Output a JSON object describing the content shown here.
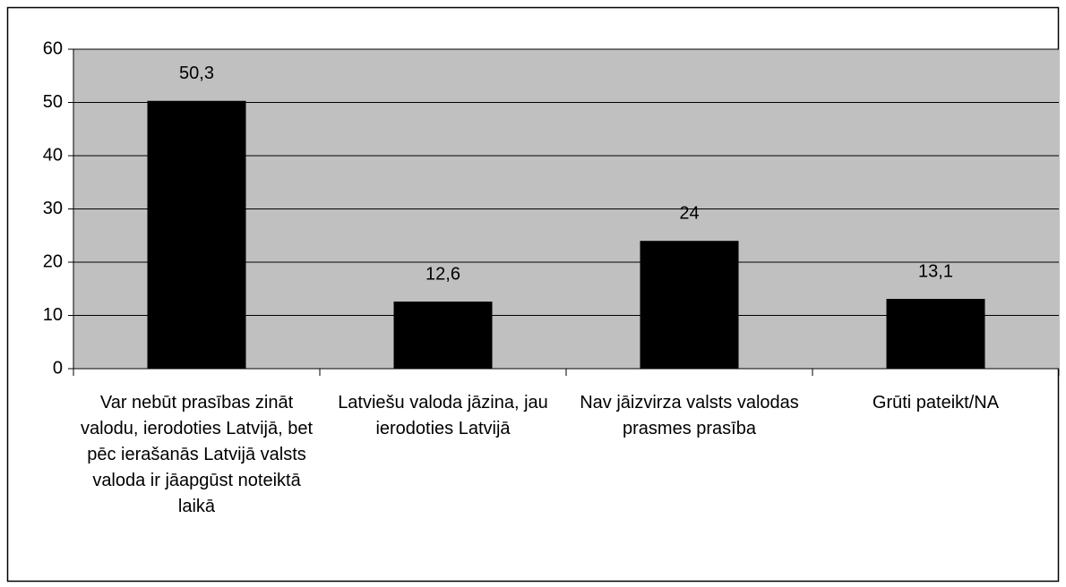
{
  "chart_data": {
    "type": "bar",
    "categories": [
      "Var nebūt prasības zināt valodu, ierodoties Latvijā, bet pēc ierašanās Latvijā valsts valoda ir jāapgūst noteiktā laikā",
      "Latviešu valoda jāzina, jau ierodoties Latvijā",
      "Nav jāizvirza valsts valodas prasmes prasība",
      "Grūti pateikt/NA"
    ],
    "values": [
      50.3,
      12.6,
      24,
      13.1
    ],
    "value_labels": [
      "50,3",
      "12,6",
      "24",
      "13,1"
    ],
    "color": "#000000",
    "plot_background": "#c0c0c0",
    "ylim": [
      0,
      60
    ],
    "yticks": [
      0,
      10,
      20,
      30,
      40,
      50,
      60
    ],
    "grid": true
  }
}
